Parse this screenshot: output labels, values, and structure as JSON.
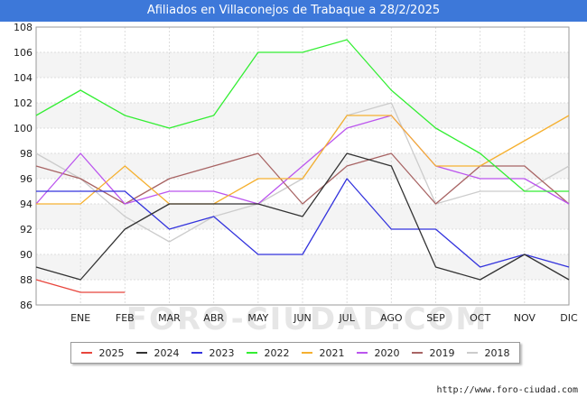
{
  "title": "Afiliados en Villaconejos de Trabaque a 28/2/2025",
  "source": "http://www.foro-ciudad.com",
  "watermark": "FORO-CIUDAD.COM",
  "chart_data": {
    "type": "line",
    "categories": [
      "",
      "ENE",
      "FEB",
      "MAR",
      "ABR",
      "MAY",
      "JUN",
      "JUL",
      "AGO",
      "SEP",
      "OCT",
      "NOV",
      "DIC"
    ],
    "ylim": [
      86,
      108
    ],
    "yticks": [
      "86",
      "88",
      "90",
      "92",
      "94",
      "96",
      "98",
      "100",
      "102",
      "104",
      "106",
      "108"
    ],
    "grid": true,
    "legend_position": "bottom",
    "series": [
      {
        "name": "2025",
        "color": "#e8453c",
        "values": [
          88,
          87,
          87,
          null,
          null,
          null,
          null,
          null,
          null,
          null,
          null,
          null,
          null
        ]
      },
      {
        "name": "2024",
        "color": "#333333",
        "values": [
          89,
          88,
          92,
          94,
          94,
          94,
          93,
          98,
          97,
          89,
          88,
          90,
          88
        ]
      },
      {
        "name": "2023",
        "color": "#3333dd",
        "values": [
          95,
          95,
          95,
          92,
          93,
          90,
          90,
          96,
          92,
          92,
          89,
          90,
          89
        ]
      },
      {
        "name": "2022",
        "color": "#33ee33",
        "values": [
          101,
          103,
          101,
          100,
          101,
          106,
          106,
          107,
          103,
          100,
          98,
          95,
          95
        ]
      },
      {
        "name": "2021",
        "color": "#f5b030",
        "values": [
          94,
          94,
          97,
          94,
          94,
          96,
          96,
          101,
          101,
          97,
          97,
          99,
          101
        ]
      },
      {
        "name": "2020",
        "color": "#bb55ee",
        "values": [
          94,
          98,
          94,
          95,
          95,
          94,
          97,
          100,
          101,
          97,
          96,
          96,
          94
        ]
      },
      {
        "name": "2019",
        "color": "#a86464",
        "values": [
          97,
          96,
          94,
          96,
          97,
          98,
          94,
          97,
          98,
          94,
          97,
          97,
          94
        ]
      },
      {
        "name": "2018",
        "color": "#cccccc",
        "values": [
          98,
          96,
          93,
          91,
          93,
          94,
          96,
          101,
          102,
          94,
          95,
          95,
          97
        ]
      }
    ]
  }
}
